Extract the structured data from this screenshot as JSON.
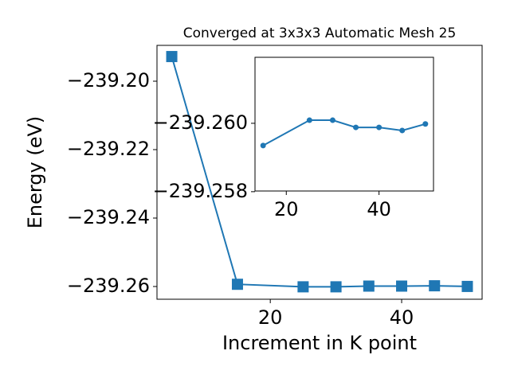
{
  "chart_data": [
    {
      "type": "line",
      "title": "Converged at 3x3x3 Automatic Mesh 25",
      "x_label": "Increment in K point",
      "y_label": "Energy (eV)",
      "x": [
        5,
        15,
        25,
        30,
        35,
        40,
        45,
        50
      ],
      "series": [
        {
          "color": "#1f77b4",
          "marker": "square",
          "values": [
            -239.1928,
            -239.25935,
            -239.26009,
            -239.26009,
            -239.25988,
            -239.25988,
            -239.25979,
            -239.25998
          ]
        }
      ],
      "xlim": [
        2.75,
        52.25
      ],
      "xticks": [
        20,
        40
      ],
      "ylim": [
        -239.26372,
        -239.18953
      ],
      "yticks": [
        {
          "value": -239.2,
          "label": "−239.20"
        },
        {
          "value": -239.22,
          "label": "−239.22"
        },
        {
          "value": -239.24,
          "label": "−239.24"
        },
        {
          "value": -239.26,
          "label": "−239.26"
        }
      ]
    },
    {
      "type": "line",
      "x": [
        15,
        25,
        30,
        35,
        40,
        45,
        50
      ],
      "series": [
        {
          "color": "#1f77b4",
          "marker": "circle",
          "values": [
            -239.25935,
            -239.26009,
            -239.26009,
            -239.25988,
            -239.25988,
            -239.25979,
            -239.25998
          ]
        }
      ],
      "xlim": [
        13.25,
        51.75
      ],
      "xticks": [
        20,
        40
      ],
      "ylim": [
        -239.26193,
        -239.25802
      ],
      "y_inverted": true,
      "yticks": [
        {
          "value": -239.26,
          "label": "−239.260"
        },
        {
          "value": -239.258,
          "label": "−239.258"
        }
      ]
    }
  ]
}
